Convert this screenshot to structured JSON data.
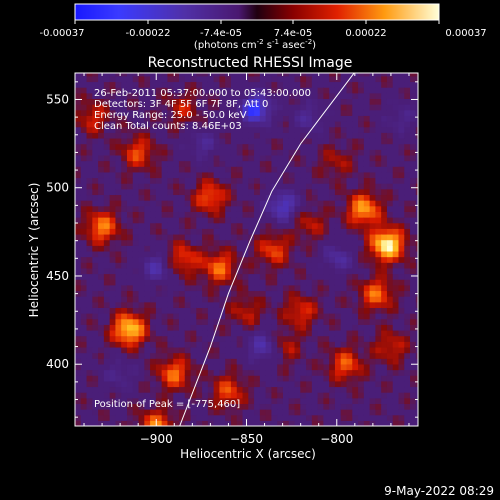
{
  "colorbar": {
    "ticks": [
      "-0.00037",
      "-0.00022",
      "-7.4e-05",
      "7.4e-05",
      "0.00022",
      "0.00037"
    ],
    "label_main": "(photons cm",
    "label_exp1": "-2",
    "label_mid": " s",
    "label_exp2": "-1",
    "label_end": " asec",
    "label_exp3": "-2",
    "label_close": ")",
    "range": [
      -0.00037,
      0.00037
    ]
  },
  "chart_data": {
    "type": "heatmap",
    "title": "Reconstructed RHESSI Image",
    "xlabel": "Heliocentric X (arcsec)",
    "ylabel": "Heliocentric Y (arcsec)",
    "xlim": [
      -945,
      -755
    ],
    "ylim": [
      365,
      565
    ],
    "x_ticks": [
      -900,
      -850,
      -800
    ],
    "x_tick_labels": [
      "−900",
      "−850",
      "−800"
    ],
    "y_ticks": [
      400,
      450,
      500,
      550
    ],
    "y_tick_labels": [
      "400",
      "450",
      "500",
      "550"
    ],
    "limb_curve": [
      [
        -887,
        365
      ],
      [
        -870,
        410
      ],
      [
        -860,
        440
      ],
      [
        -848,
        470
      ],
      [
        -836,
        498
      ],
      [
        -820,
        525
      ],
      [
        -800,
        552
      ],
      [
        -783,
        575
      ]
    ],
    "blobs": [
      {
        "x": -915,
        "y": 420,
        "v": 0.85
      },
      {
        "x": -930,
        "y": 478,
        "v": 0.6
      },
      {
        "x": -935,
        "y": 540,
        "v": 0.35
      },
      {
        "x": -910,
        "y": 520,
        "v": 0.45
      },
      {
        "x": -885,
        "y": 545,
        "v": 0.3
      },
      {
        "x": -870,
        "y": 495,
        "v": 0.5
      },
      {
        "x": -865,
        "y": 455,
        "v": 0.55
      },
      {
        "x": -885,
        "y": 460,
        "v": 0.45
      },
      {
        "x": -890,
        "y": 395,
        "v": 0.55
      },
      {
        "x": -860,
        "y": 385,
        "v": 0.45
      },
      {
        "x": -835,
        "y": 465,
        "v": 0.45
      },
      {
        "x": -820,
        "y": 430,
        "v": 0.4
      },
      {
        "x": -815,
        "y": 480,
        "v": 0.3
      },
      {
        "x": -800,
        "y": 515,
        "v": 0.25
      },
      {
        "x": -785,
        "y": 488,
        "v": 0.7
      },
      {
        "x": -772,
        "y": 468,
        "v": 1.0
      },
      {
        "x": -778,
        "y": 440,
        "v": 0.55
      },
      {
        "x": -795,
        "y": 400,
        "v": 0.5
      },
      {
        "x": -770,
        "y": 410,
        "v": 0.35
      },
      {
        "x": -830,
        "y": 410,
        "v": 0.35
      },
      {
        "x": -850,
        "y": 430,
        "v": 0.3
      },
      {
        "x": -900,
        "y": 365,
        "v": 0.6
      },
      {
        "x": -845,
        "y": 545,
        "v": -0.8
      },
      {
        "x": -830,
        "y": 490,
        "v": -0.6
      },
      {
        "x": -900,
        "y": 455,
        "v": -0.45
      },
      {
        "x": -840,
        "y": 410,
        "v": -0.55
      },
      {
        "x": -800,
        "y": 460,
        "v": -0.4
      },
      {
        "x": -875,
        "y": 525,
        "v": -0.35
      },
      {
        "x": -920,
        "y": 395,
        "v": -0.3
      },
      {
        "x": -815,
        "y": 540,
        "v": -0.35
      },
      {
        "x": -765,
        "y": 540,
        "v": -0.3
      }
    ]
  },
  "annotations": {
    "time": "26-Feb-2011 05:37:00.000 to 05:43:00.000",
    "detectors": "Detectors: 3F 4F 5F 6F 7F 8F, Att 0",
    "energy": "Energy Range: 25.0 - 50.0 keV",
    "clean": "Clean     Total counts: 8.46E+03",
    "peak": "Position of Peak = [-775,460]"
  },
  "footer": {
    "timestamp": "9-May-2022 08:29"
  }
}
